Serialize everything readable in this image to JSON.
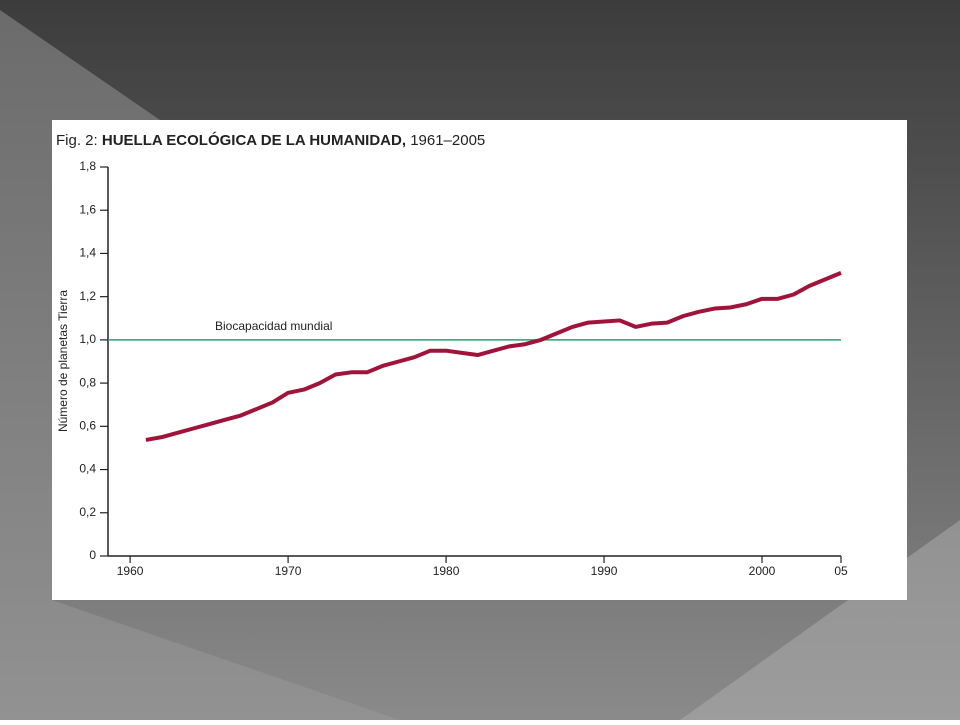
{
  "chart_data": {
    "type": "line",
    "figure_label": "Fig. 2:",
    "title": "HUELLA ECOLÓGICA DE LA HUMANIDAD,",
    "subtitle": "1961–2005",
    "y_label": "Número de planetas Tierra",
    "x": [
      1961,
      1962,
      1963,
      1964,
      1965,
      1966,
      1967,
      1968,
      1969,
      1970,
      1971,
      1972,
      1973,
      1974,
      1975,
      1976,
      1977,
      1978,
      1979,
      1980,
      1981,
      1982,
      1983,
      1984,
      1985,
      1986,
      1987,
      1988,
      1989,
      1990,
      1991,
      1992,
      1993,
      1994,
      1995,
      1996,
      1997,
      1998,
      1999,
      2000,
      2001,
      2002,
      2003,
      2004,
      2005
    ],
    "values": [
      0.537,
      0.55,
      0.57,
      0.59,
      0.61,
      0.63,
      0.65,
      0.68,
      0.71,
      0.755,
      0.77,
      0.8,
      0.84,
      0.85,
      0.85,
      0.88,
      0.9,
      0.92,
      0.95,
      0.95,
      0.94,
      0.93,
      0.95,
      0.97,
      0.98,
      1.0,
      1.03,
      1.06,
      1.08,
      1.085,
      1.09,
      1.06,
      1.075,
      1.08,
      1.11,
      1.13,
      1.145,
      1.15,
      1.165,
      1.19,
      1.19,
      1.21,
      1.25,
      1.28,
      1.31
    ],
    "color": "#a0133a",
    "reference_lines": [
      {
        "value": 1.0,
        "label": "Biocapacidad mundial",
        "color": "#2e9e6e"
      }
    ],
    "xlim": [
      1958.6,
      2005
    ],
    "xticks": [
      1960,
      1970,
      1980,
      1990,
      2000,
      {
        "value": 2005,
        "label": "05"
      }
    ],
    "ylim": [
      0,
      1.8
    ],
    "yticks": [
      0,
      {
        "value": 0.2,
        "label": "0,2"
      },
      {
        "value": 0.4,
        "label": "0,4"
      },
      {
        "value": 0.6,
        "label": "0,6"
      },
      {
        "value": 0.8,
        "label": "0,8"
      },
      {
        "value": 1.0,
        "label": "1,0"
      },
      {
        "value": 1.2,
        "label": "1,2"
      },
      {
        "value": 1.4,
        "label": "1,4"
      },
      {
        "value": 1.6,
        "label": "1,6"
      },
      {
        "value": 1.8,
        "label": "1,8"
      }
    ],
    "grid": false
  }
}
